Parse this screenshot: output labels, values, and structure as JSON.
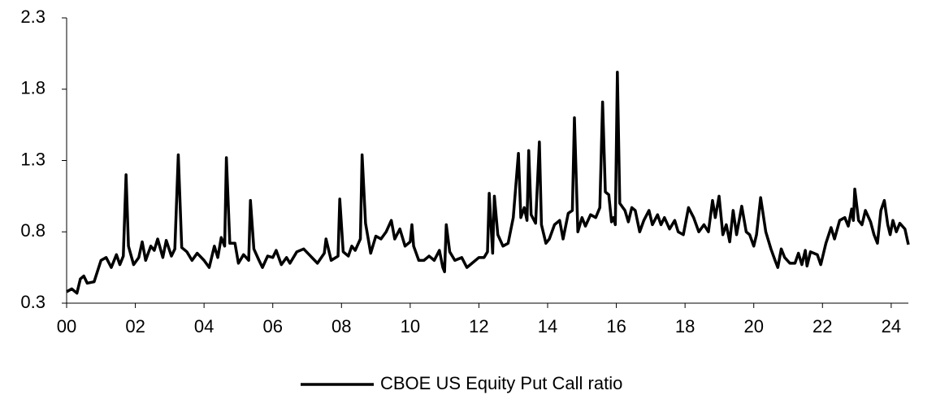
{
  "chart_data": {
    "type": "line",
    "x": [
      0.0,
      0.15,
      0.3,
      0.4,
      0.5,
      0.6,
      0.8,
      1.0,
      1.15,
      1.3,
      1.45,
      1.55,
      1.65,
      1.73,
      1.8,
      1.95,
      2.1,
      2.2,
      2.3,
      2.45,
      2.55,
      2.65,
      2.8,
      2.9,
      3.05,
      3.15,
      3.25,
      3.35,
      3.5,
      3.65,
      3.8,
      4.0,
      4.15,
      4.3,
      4.4,
      4.5,
      4.6,
      4.65,
      4.75,
      4.9,
      5.0,
      5.15,
      5.3,
      5.35,
      5.45,
      5.6,
      5.7,
      5.85,
      6.0,
      6.1,
      6.25,
      6.4,
      6.5,
      6.7,
      6.9,
      7.1,
      7.3,
      7.5,
      7.55,
      7.7,
      7.9,
      7.95,
      8.05,
      8.2,
      8.3,
      8.4,
      8.55,
      8.6,
      8.7,
      8.85,
      9.0,
      9.15,
      9.3,
      9.45,
      9.55,
      9.7,
      9.85,
      10.0,
      10.05,
      10.1,
      10.25,
      10.4,
      10.55,
      10.7,
      10.85,
      10.95,
      11.0,
      11.05,
      11.15,
      11.3,
      11.5,
      11.65,
      11.8,
      12.0,
      12.15,
      12.25,
      12.3,
      12.4,
      12.45,
      12.55,
      12.7,
      12.85,
      13.0,
      13.15,
      13.22,
      13.32,
      13.4,
      13.45,
      13.52,
      13.65,
      13.76,
      13.82,
      13.95,
      14.05,
      14.2,
      14.35,
      14.45,
      14.6,
      14.72,
      14.78,
      14.88,
      15.0,
      15.1,
      15.25,
      15.4,
      15.52,
      15.6,
      15.68,
      15.78,
      15.86,
      15.92,
      15.97,
      16.03,
      16.1,
      16.25,
      16.35,
      16.45,
      16.55,
      16.68,
      16.8,
      16.95,
      17.05,
      17.2,
      17.3,
      17.4,
      17.55,
      17.7,
      17.8,
      17.95,
      18.1,
      18.25,
      18.4,
      18.55,
      18.68,
      18.8,
      18.88,
      18.99,
      19.1,
      19.2,
      19.3,
      19.4,
      19.5,
      19.65,
      19.78,
      19.88,
      20.0,
      20.08,
      20.2,
      20.35,
      20.5,
      20.62,
      20.7,
      20.8,
      20.9,
      21.05,
      21.2,
      21.3,
      21.4,
      21.5,
      21.55,
      21.65,
      21.85,
      21.95,
      22.1,
      22.25,
      22.35,
      22.5,
      22.65,
      22.75,
      22.85,
      22.9,
      22.94,
      23.05,
      23.15,
      23.25,
      23.4,
      23.5,
      23.6,
      23.7,
      23.8,
      23.9,
      23.97,
      24.05,
      24.15,
      24.25,
      24.4,
      24.5
    ],
    "series": [
      {
        "name": "CBOE US Equity Put Call ratio",
        "color": "#000000",
        "values": [
          0.38,
          0.4,
          0.37,
          0.47,
          0.49,
          0.44,
          0.45,
          0.6,
          0.62,
          0.55,
          0.64,
          0.57,
          0.63,
          1.2,
          0.7,
          0.57,
          0.62,
          0.73,
          0.6,
          0.7,
          0.67,
          0.75,
          0.62,
          0.74,
          0.63,
          0.68,
          1.34,
          0.69,
          0.66,
          0.6,
          0.65,
          0.6,
          0.55,
          0.7,
          0.62,
          0.76,
          0.7,
          1.32,
          0.72,
          0.72,
          0.58,
          0.64,
          0.6,
          1.02,
          0.68,
          0.6,
          0.55,
          0.63,
          0.62,
          0.67,
          0.57,
          0.62,
          0.58,
          0.66,
          0.68,
          0.63,
          0.58,
          0.65,
          0.75,
          0.6,
          0.63,
          1.03,
          0.66,
          0.63,
          0.7,
          0.67,
          0.75,
          1.34,
          0.86,
          0.65,
          0.77,
          0.75,
          0.8,
          0.88,
          0.75,
          0.82,
          0.7,
          0.73,
          0.85,
          0.7,
          0.6,
          0.6,
          0.63,
          0.6,
          0.67,
          0.55,
          0.52,
          0.85,
          0.66,
          0.6,
          0.62,
          0.55,
          0.58,
          0.62,
          0.62,
          0.66,
          1.07,
          0.65,
          1.05,
          0.78,
          0.7,
          0.72,
          0.9,
          1.35,
          0.9,
          0.97,
          0.88,
          1.37,
          0.92,
          0.86,
          1.43,
          0.85,
          0.72,
          0.75,
          0.85,
          0.88,
          0.75,
          0.93,
          0.95,
          1.6,
          0.8,
          0.9,
          0.84,
          0.92,
          0.9,
          0.97,
          1.71,
          1.08,
          1.06,
          0.87,
          0.9,
          0.85,
          1.92,
          1.0,
          0.95,
          0.87,
          0.97,
          0.95,
          0.8,
          0.88,
          0.95,
          0.85,
          0.92,
          0.85,
          0.9,
          0.82,
          0.88,
          0.8,
          0.78,
          0.97,
          0.9,
          0.8,
          0.85,
          0.8,
          1.02,
          0.9,
          1.05,
          0.78,
          0.85,
          0.73,
          0.95,
          0.78,
          0.98,
          0.8,
          0.78,
          0.7,
          0.78,
          1.04,
          0.8,
          0.68,
          0.6,
          0.55,
          0.68,
          0.62,
          0.58,
          0.58,
          0.65,
          0.57,
          0.67,
          0.56,
          0.66,
          0.64,
          0.57,
          0.72,
          0.83,
          0.75,
          0.88,
          0.9,
          0.84,
          0.96,
          0.88,
          1.1,
          0.88,
          0.85,
          0.95,
          0.87,
          0.78,
          0.72,
          0.95,
          1.02,
          0.85,
          0.78,
          0.88,
          0.8,
          0.86,
          0.82,
          0.71
        ]
      }
    ],
    "xlim": [
      0,
      24.5
    ],
    "xticks": [
      {
        "value": 0,
        "label": "00"
      },
      {
        "value": 2,
        "label": "02"
      },
      {
        "value": 4,
        "label": "04"
      },
      {
        "value": 6,
        "label": "06"
      },
      {
        "value": 8,
        "label": "08"
      },
      {
        "value": 10,
        "label": "10"
      },
      {
        "value": 12,
        "label": "12"
      },
      {
        "value": 14,
        "label": "14"
      },
      {
        "value": 16,
        "label": "16"
      },
      {
        "value": 18,
        "label": "18"
      },
      {
        "value": 20,
        "label": "20"
      },
      {
        "value": 22,
        "label": "22"
      },
      {
        "value": 24,
        "label": "24"
      }
    ],
    "ylim": [
      0.3,
      2.3
    ],
    "yticks": [
      0.3,
      0.8,
      1.3,
      1.8,
      2.3
    ],
    "legend": "bottom"
  }
}
